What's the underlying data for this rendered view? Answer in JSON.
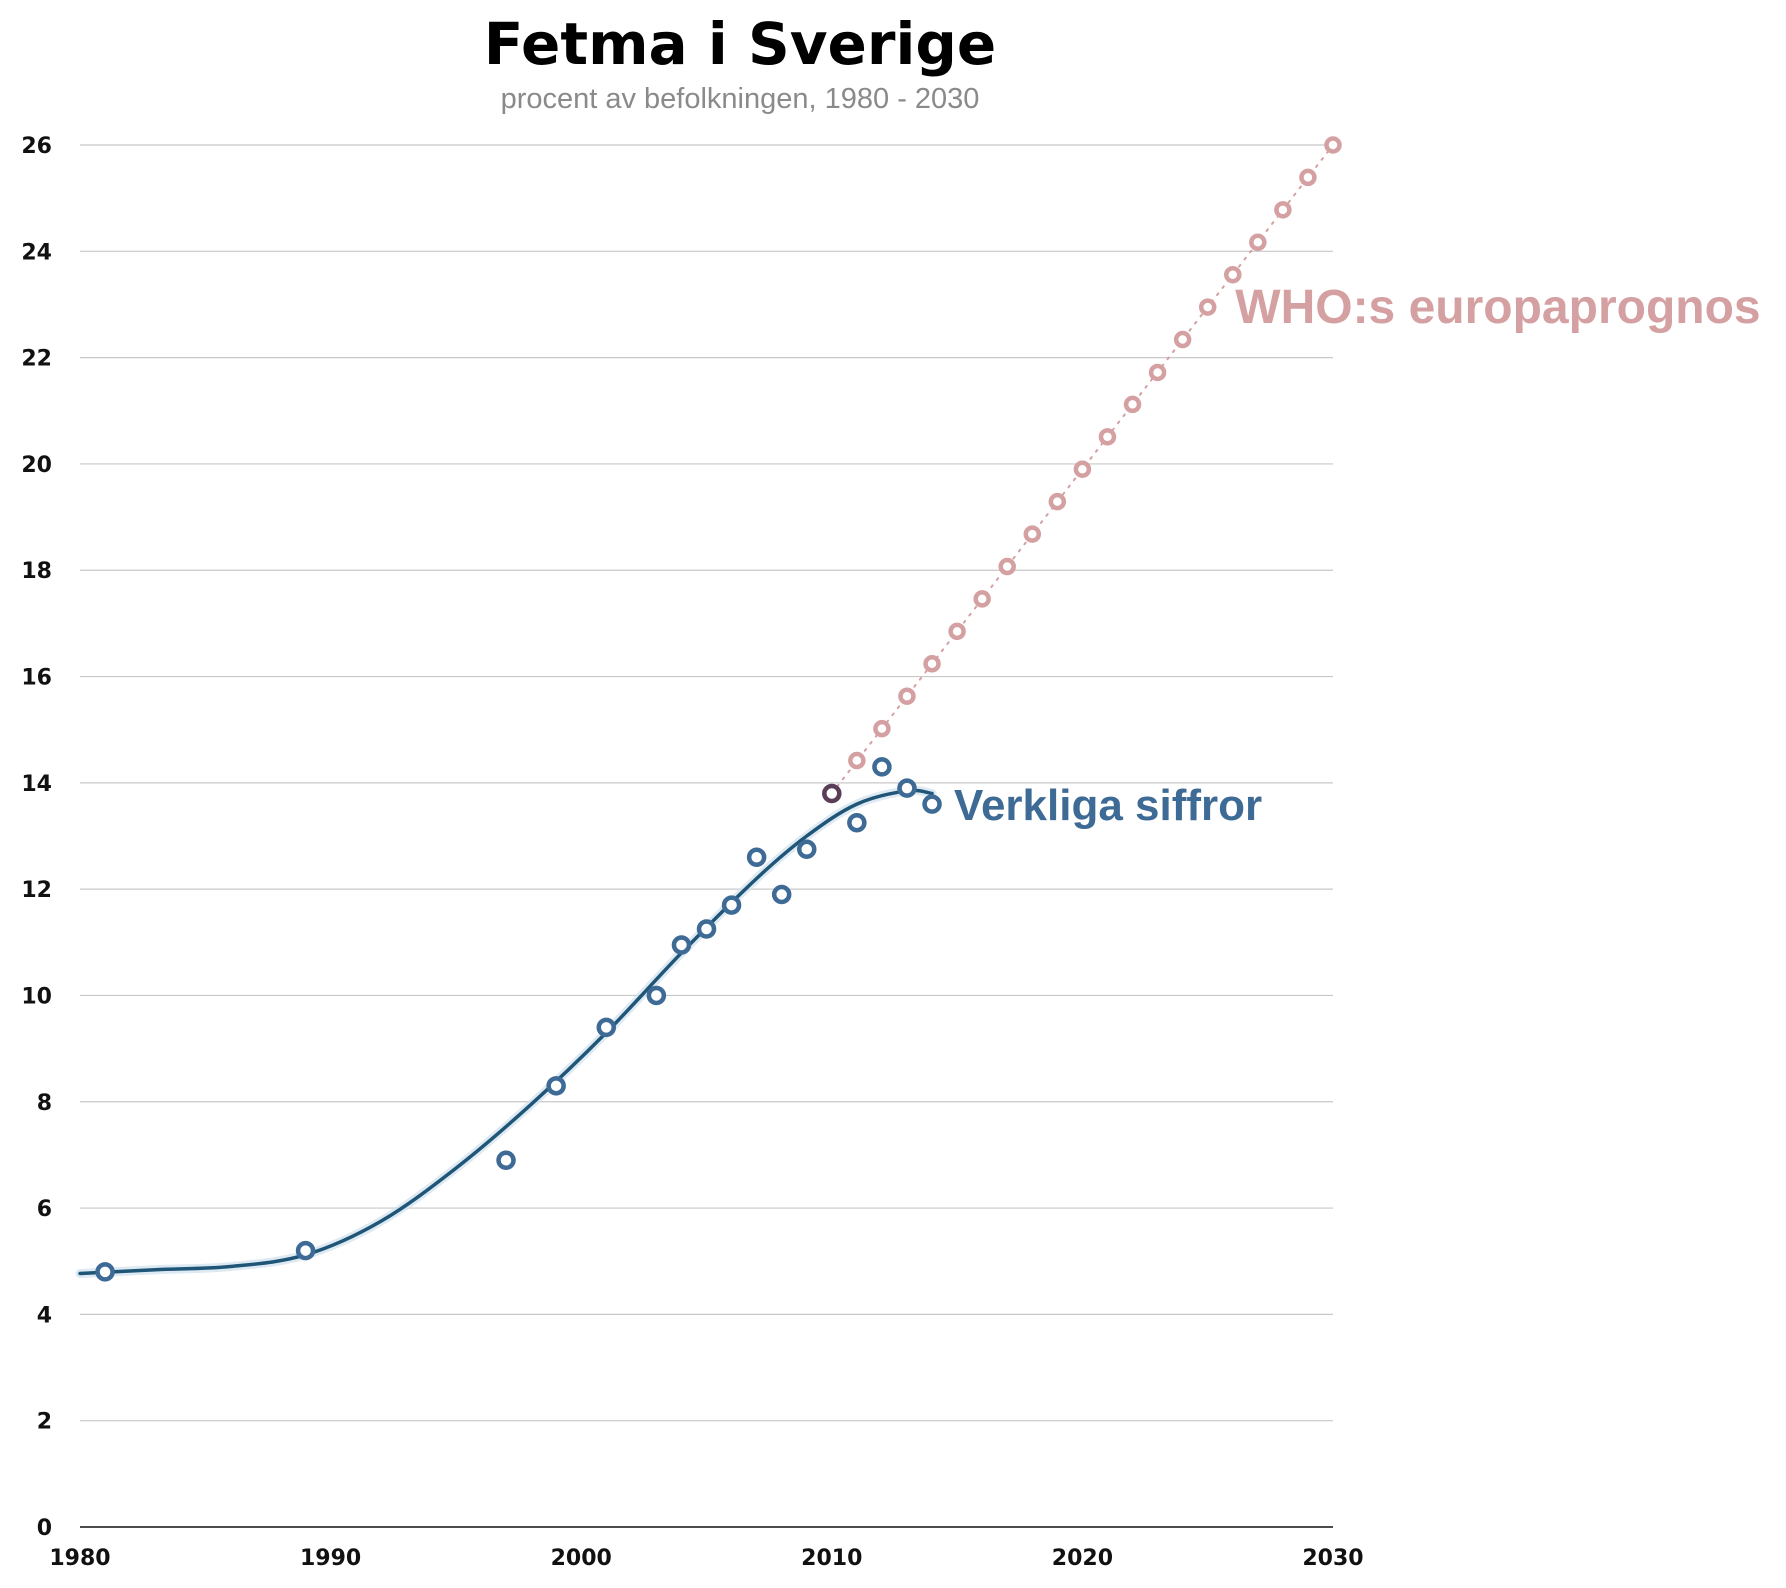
{
  "chart_data": {
    "type": "line",
    "title": "Fetma i Sverige",
    "subtitle": "procent av befolkningen, 1980 - 2030",
    "xlabel": "",
    "ylabel": "",
    "xlim": [
      1980,
      2030
    ],
    "ylim": [
      0,
      26
    ],
    "x_ticks": [
      "1980",
      "1990",
      "2000",
      "2010",
      "2020",
      "2030"
    ],
    "y_ticks": [
      "0",
      "2",
      "4",
      "6",
      "8",
      "10",
      "12",
      "14",
      "16",
      "18",
      "20",
      "22",
      "24",
      "26"
    ],
    "grid": true,
    "series": [
      {
        "name": "Verkliga siffror",
        "color": "#3e6a96",
        "trend_color": "#1f5577",
        "marker": "open-circle",
        "points": [
          {
            "x": 1981,
            "y": 4.8
          },
          {
            "x": 1989,
            "y": 5.2
          },
          {
            "x": 1997,
            "y": 6.9
          },
          {
            "x": 1999,
            "y": 8.3
          },
          {
            "x": 2001,
            "y": 9.4
          },
          {
            "x": 2003,
            "y": 10.0
          },
          {
            "x": 2004,
            "y": 10.95
          },
          {
            "x": 2005,
            "y": 11.25
          },
          {
            "x": 2006,
            "y": 11.7
          },
          {
            "x": 2007,
            "y": 12.6
          },
          {
            "x": 2008,
            "y": 11.9
          },
          {
            "x": 2009,
            "y": 12.75
          },
          {
            "x": 2010,
            "y": 13.8
          },
          {
            "x": 2011,
            "y": 13.25
          },
          {
            "x": 2012,
            "y": 14.3
          },
          {
            "x": 2013,
            "y": 13.9
          },
          {
            "x": 2014,
            "y": 13.6
          }
        ],
        "trend": [
          {
            "x": 1980,
            "y": 4.77
          },
          {
            "x": 1983,
            "y": 4.84
          },
          {
            "x": 1986,
            "y": 4.9
          },
          {
            "x": 1989,
            "y": 5.12
          },
          {
            "x": 1992,
            "y": 5.75
          },
          {
            "x": 1995,
            "y": 6.75
          },
          {
            "x": 1998,
            "y": 7.95
          },
          {
            "x": 2001,
            "y": 9.3
          },
          {
            "x": 2004,
            "y": 10.8
          },
          {
            "x": 2007,
            "y": 12.2
          },
          {
            "x": 2009,
            "y": 13.0
          },
          {
            "x": 2011,
            "y": 13.6
          },
          {
            "x": 2013,
            "y": 13.85
          },
          {
            "x": 2014,
            "y": 13.8
          }
        ]
      },
      {
        "name": "WHO:s europaprognos",
        "color": "#d4a0a2",
        "marker": "open-circle",
        "points": [
          {
            "x": 2010,
            "y": 13.8
          },
          {
            "x": 2011,
            "y": 14.42
          },
          {
            "x": 2012,
            "y": 15.02
          },
          {
            "x": 2013,
            "y": 15.63
          },
          {
            "x": 2014,
            "y": 16.24
          },
          {
            "x": 2015,
            "y": 16.85
          },
          {
            "x": 2016,
            "y": 17.46
          },
          {
            "x": 2017,
            "y": 18.07
          },
          {
            "x": 2018,
            "y": 18.68
          },
          {
            "x": 2019,
            "y": 19.29
          },
          {
            "x": 2020,
            "y": 19.9
          },
          {
            "x": 2021,
            "y": 20.51
          },
          {
            "x": 2022,
            "y": 21.12
          },
          {
            "x": 2023,
            "y": 21.72
          },
          {
            "x": 2024,
            "y": 22.34
          },
          {
            "x": 2025,
            "y": 22.95
          },
          {
            "x": 2026,
            "y": 23.56
          },
          {
            "x": 2027,
            "y": 24.17
          },
          {
            "x": 2028,
            "y": 24.78
          },
          {
            "x": 2029,
            "y": 25.39
          },
          {
            "x": 2030,
            "y": 26.0
          }
        ]
      }
    ],
    "overlap_point_color": "#5a3d56"
  }
}
